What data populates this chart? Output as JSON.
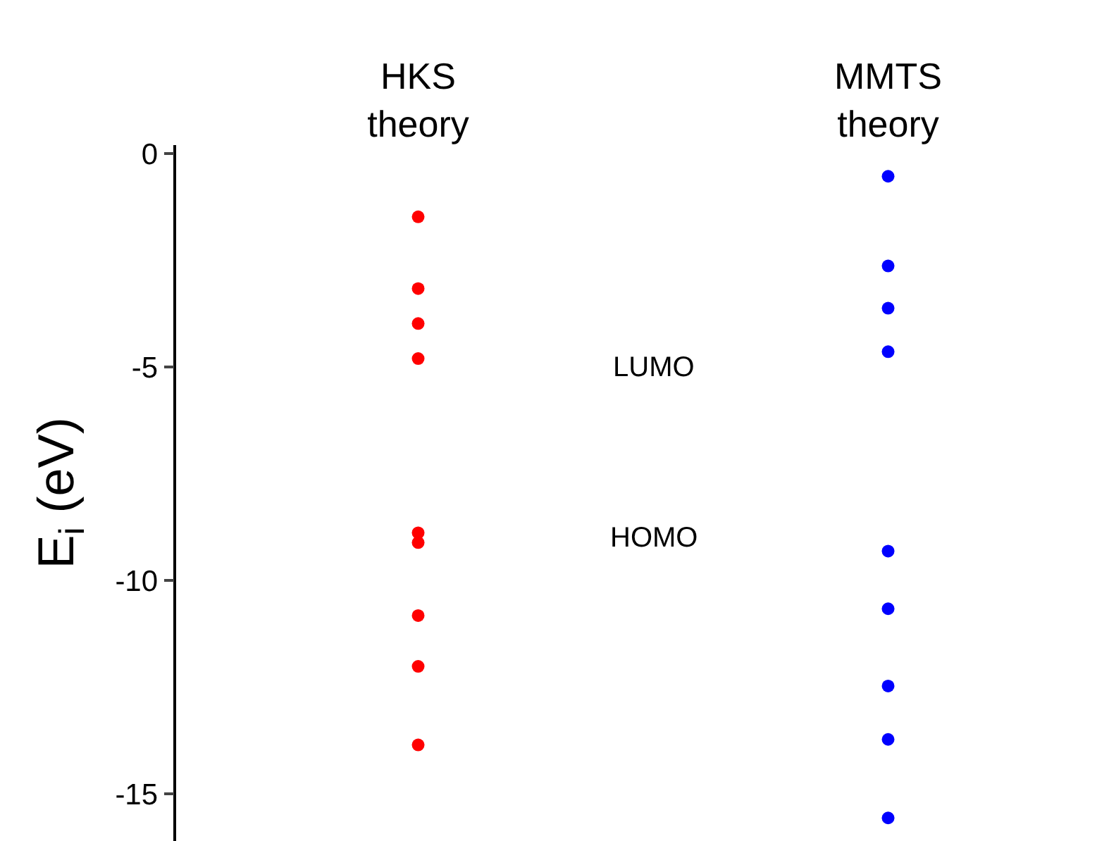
{
  "chart_data": {
    "type": "scatter",
    "ylabel": "E$_{i}$ (eV)",
    "categories": [
      "HKS theory",
      "MMTS theory"
    ],
    "series": [
      {
        "color": "#ff0000",
        "x": [
          "HKS theory",
          "HKS theory",
          "HKS theory",
          "HKS theory",
          "HKS theory",
          "HKS theory",
          "HKS theory",
          "HKS theory",
          "HKS theory"
        ],
        "values": [
          -1.48,
          -3.16,
          -3.98,
          -4.8,
          -8.88,
          -9.11,
          -10.82,
          -12.01,
          -13.85
        ]
      },
      {
        "color": "#0000ff",
        "x": [
          "MMTS theory",
          "MMTS theory",
          "MMTS theory",
          "MMTS theory",
          "MMTS theory",
          "MMTS theory",
          "MMTS theory",
          "MMTS theory",
          "MMTS theory"
        ],
        "values": [
          -0.53,
          -2.63,
          -3.62,
          -4.64,
          -9.31,
          -10.66,
          -12.47,
          -13.72,
          -15.56
        ]
      }
    ],
    "ylim": [
      -16.1,
      0.2
    ],
    "yticks": [
      0,
      -5,
      -10,
      -15
    ],
    "grid": false,
    "marker": "circle",
    "annotations": [
      "LUMO",
      "HOMO"
    ]
  }
}
